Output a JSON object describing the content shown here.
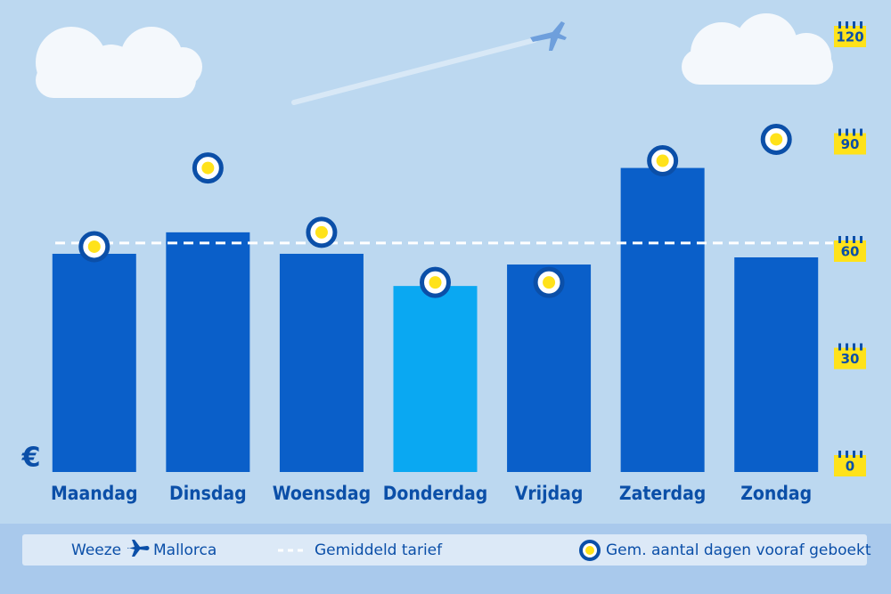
{
  "chart_data": {
    "type": "bar",
    "currency": "€",
    "route_from": "Weeze",
    "route_to": "Mallorca",
    "categories": [
      "Maandag",
      "Dinsdag",
      "Woensdag",
      "Donderdag",
      "Vrijdag",
      "Zaterdag",
      "Zondag"
    ],
    "values": [
      61,
      67,
      61,
      52,
      58,
      85,
      60
    ],
    "colors": [
      "#0a5fc9",
      "#0a5fc9",
      "#0a5fc9",
      "#0aa8f2",
      "#0a5fc9",
      "#0a5fc9",
      "#0a5fc9"
    ],
    "ylim": [
      0,
      120
    ],
    "average": {
      "name": "Gemiddeld tarief",
      "value": 64,
      "color": "#ffffff"
    },
    "series": [
      {
        "name": "Gem. aantal dagen vooraf geboekt",
        "color": "#ffe21a",
        "axis": "y2",
        "values": [
          63,
          85,
          67,
          53,
          53,
          87,
          93
        ]
      }
    ],
    "y2lim": [
      0,
      120
    ],
    "y2ticks": [
      0,
      30,
      60,
      90,
      120
    ]
  }
}
